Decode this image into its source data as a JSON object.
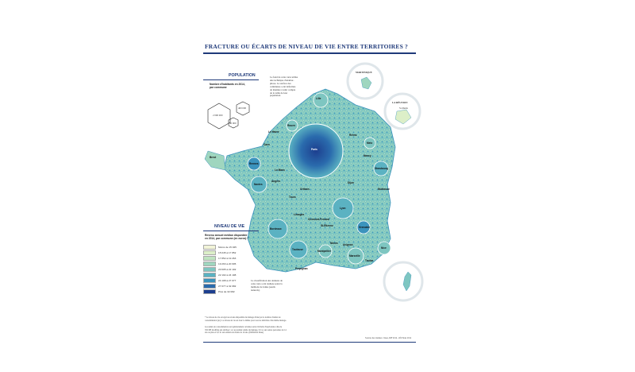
{
  "title": "FRACTURE OU ÉCARTS DE NIVEAU DE VIE ENTRE TERRITOIRES ?",
  "population": {
    "heading": "POPULATION",
    "subtitle_line1": "Nombre d'habitants en 2014,",
    "subtitle_line2": "par commune",
    "hex_labels": [
      "2 000 000",
      "400 000",
      "80 000"
    ]
  },
  "method_note": [
    "Le fond de cette carte utilise",
    "une technique d'anamor-",
    "phose. La surface des",
    "communes a été déformée",
    "de manière à tenir compte",
    "de la taille de leur",
    "population."
  ],
  "insets": {
    "martinique": "MARTINIQUE",
    "reunion": "LA RÉUNION",
    "reunion_city": "St-Denis"
  },
  "niveau_de_vie": {
    "heading": "NIVEAU DE VIE",
    "subtitle": [
      "Revenu annuel médian disponible",
      "en 2014, par commune (en euros) *"
    ],
    "classes": [
      {
        "label": "Moins de 15 045",
        "color": "#f2f4d8"
      },
      {
        "label": "15 045 à 17 852",
        "color": "#dcefc8"
      },
      {
        "label": "17 852 à 19 263",
        "color": "#bfe4c0"
      },
      {
        "label": "19 263 à 20 605",
        "color": "#9fd6bf"
      },
      {
        "label": "20 605 à 22 102",
        "color": "#7ec6c1"
      },
      {
        "label": "22 102 à 24 108",
        "color": "#5bb2c2"
      },
      {
        "label": "24 108 à 27 077",
        "color": "#3b93bd"
      },
      {
        "label": "27 077 à 32 082",
        "color": "#2a6bad"
      },
      {
        "label": "Plus de 32 082",
        "color": "#1d3f8f"
      }
    ],
    "classification_note": [
      "La classification des données de",
      "cette carte a été réalisée selon la",
      "méthode de Jenks (seuils",
      "naturels)."
    ]
  },
  "cities": [
    "Lille",
    "Le Havre",
    "Rouen",
    "Caen",
    "Paris",
    "Reims",
    "Metz",
    "Nancy",
    "Strasbourg",
    "Rennes",
    "Le Mans",
    "Angers",
    "Orléans",
    "Tours",
    "Nantes",
    "Dijon",
    "Mulhouse",
    "Limoges",
    "Lyon",
    "Clermont-Ferrand",
    "St-Étienne",
    "Grenoble",
    "Bordeaux",
    "Toulouse",
    "Montpellier",
    "Nîmes",
    "Avignon",
    "Marseille",
    "Toulon",
    "Nice",
    "Perpignan",
    "Brest"
  ],
  "footnotes": {
    "note1": [
      "* Le niveau de vie est égal au revenu disponible du ménage divisé par le nombre d'unités de",
      "consommation (uc). Le niveau de vie est donc le même pour tous les individus d'un même ménage."
    ],
    "note2": [
      "Les unités de consommation sont généralement calculées selon l'échelle d'équivalence dite de",
      "l'OCDE modifiée qui attribue 1 uc au premier adulte du ménage, 0,5 uc aux autres personnes de 14",
      "ans ou plus et 0,3 uc aux enfants de moins de 14 ans. (Définition Insee)"
    ],
    "source": "Sources des données : Insee, IRF 2014 - Ofli Stats 2014"
  }
}
